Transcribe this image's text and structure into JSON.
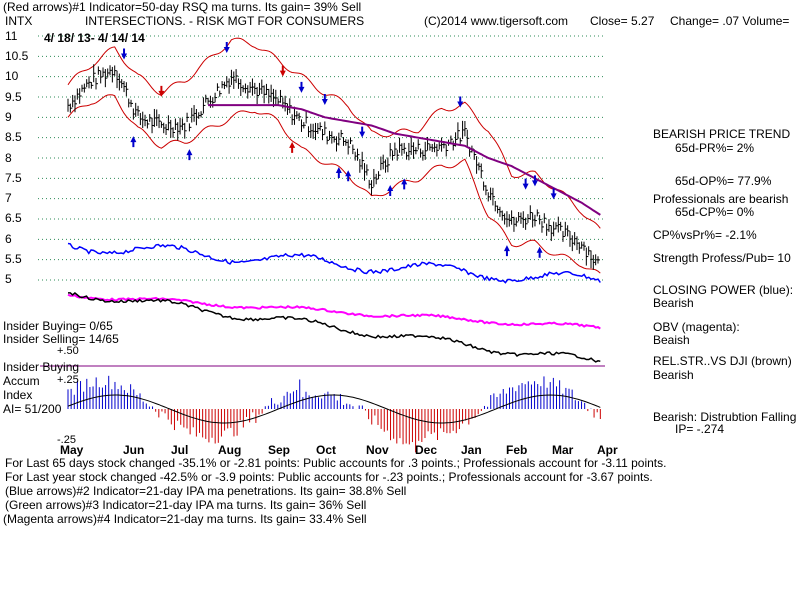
{
  "header": {
    "line1_left": "(Red arrows)#1 Indicator=50-day RSQ ma turns. Its gain= 39% Sell",
    "ticker": "INTX",
    "company": "INTERSECTIONS. - RISK MGT FOR CONSUMERS",
    "copyright": "(C)2014 www.tigersoft.com",
    "close": "Close= 5.27",
    "change": "Change= .07 Volume=",
    "date_range": "4/ 18/ 13- 4/ 14/ 14"
  },
  "left_panel": {
    "insider_buying_count": "Insider Buying= 0/65",
    "insider_selling_count": "Insider Selling= 14/65",
    "plus50": "+.50",
    "insider_buying_label": "Insider Buying",
    "accum": "Accum",
    "plus25": "+.25",
    "index": "Index",
    "ai": "AI= 51/200",
    "minus25": "-.25"
  },
  "right_panel": {
    "trend_title": "BEARISH PRICE TREND",
    "pr65": "65d-PR%= 2%",
    "op65": "65d-OP%= 77.9%",
    "professionals": "Professionals are bearish",
    "cp65": "65d-CP%= 0%",
    "cpvspr": "CP%vsPr%= -2.1%",
    "strength": "Strength Profess/Pub= 10",
    "closing_power": "CLOSING POWER (blue):",
    "closing_power_value": "Bearish",
    "obv": "OBV (magenta):",
    "obv_value": "Beaish",
    "relstr": "REL.STR..VS DJI (brown)",
    "relstr_value": "Bearish",
    "dist": "Bearish: Distrubtion Falling",
    "ip": "IP= -.274"
  },
  "footer": {
    "line1": "For Last 65 days stock changed -35.1% or -2.81 points: Public accounts for .3 points.; Professionals account for -3.11 points.",
    "line2": "For Last year stock changed -42.5% or -3.9 points: Public accounts for -.23 points.; Professionals account for -3.67 points.",
    "line3": "(Blue arrows)#2 Indicator=21-day IPA ma penetrations. Its gain= 38.8% Sell",
    "line4": "(Green arrows)#3 Indicator=21-day IPA ma turns. Its gain= 36% Sell",
    "line5": "(Magenta arrows)#4 Indicator=21-day ma turns. Its gain= 33.4% Sell"
  },
  "colors": {
    "price": "#000000",
    "bands": "#cc0000",
    "ma": "#800080",
    "closing_power": "#0000ff",
    "obv": "#ff00ff",
    "rel_strength": "#000000",
    "accum_pos": "#0000cc",
    "accum_neg": "#cc0000",
    "grid": "#2e8b57"
  },
  "chart_data": {
    "type": "line",
    "title": "INTERSECTIONS. - RISK MGT FOR CONSUMERS",
    "ylim": [
      5,
      11
    ],
    "y_ticks": [
      "11",
      "10.5",
      "10",
      "9.5",
      "9",
      "8.5",
      "8",
      "7.5",
      "7",
      "6.5",
      "6",
      "5.5",
      "5"
    ],
    "x_ticks": [
      "May",
      "Jun",
      "Jul",
      "Aug",
      "Sep",
      "Oct",
      "Nov",
      "Dec",
      "Jan",
      "Feb",
      "Mar",
      "Apr"
    ],
    "grid": true,
    "series": [
      {
        "name": "Price",
        "x": [
          0,
          0.5,
          1,
          1.5,
          2,
          2.5,
          3,
          3.5,
          4,
          4.5,
          5,
          5.5,
          6,
          6.5,
          7,
          7.5,
          8,
          8.5,
          9,
          9.5,
          10,
          10.5,
          11,
          11.4
        ],
        "values": [
          9.3,
          9.9,
          10.2,
          9.0,
          8.8,
          8.8,
          9.4,
          10.0,
          9.7,
          9.4,
          8.9,
          8.6,
          8.4,
          7.4,
          8.2,
          8.2,
          8.3,
          8.6,
          7.2,
          6.4,
          6.6,
          6.2,
          5.9,
          5.3
        ]
      },
      {
        "name": "Upper band",
        "x": [
          0,
          0.5,
          1,
          1.5,
          2,
          2.5,
          3,
          3.5,
          4,
          4.5,
          5,
          5.5,
          6,
          6.5,
          7,
          7.5,
          8,
          8.5,
          9,
          9.5,
          10,
          10.5,
          11,
          11.4
        ],
        "values": [
          9.8,
          10.3,
          10.7,
          10.0,
          9.6,
          9.9,
          10.4,
          10.9,
          10.8,
          10.4,
          10.0,
          9.6,
          9.3,
          8.6,
          8.6,
          8.7,
          9.2,
          9.3,
          8.7,
          7.6,
          7.6,
          7.2,
          6.7,
          6.2
        ]
      },
      {
        "name": "Lower band",
        "x": [
          0,
          0.5,
          1,
          1.5,
          2,
          2.5,
          3,
          3.5,
          4,
          4.5,
          5,
          5.5,
          6,
          6.5,
          7,
          7.5,
          8,
          8.5,
          9,
          9.5,
          10,
          10.5,
          11,
          11.4
        ],
        "values": [
          9.0,
          9.4,
          9.5,
          8.7,
          8.3,
          8.4,
          8.7,
          9.0,
          9.2,
          8.9,
          8.2,
          7.9,
          7.6,
          7.0,
          7.3,
          7.5,
          7.8,
          7.9,
          6.6,
          5.9,
          5.9,
          5.6,
          5.4,
          5.1
        ]
      },
      {
        "name": "21-day MA",
        "x": [
          3,
          3.5,
          4,
          4.5,
          5,
          5.5,
          6,
          6.5,
          7,
          7.5,
          8,
          8.5,
          9,
          9.5,
          10,
          10.5,
          11,
          11.4
        ],
        "values": [
          9.3,
          9.3,
          9.3,
          9.3,
          9.2,
          9.0,
          8.9,
          8.8,
          8.6,
          8.5,
          8.4,
          8.3,
          8.0,
          7.8,
          7.5,
          7.2,
          6.9,
          6.6
        ]
      }
    ]
  }
}
